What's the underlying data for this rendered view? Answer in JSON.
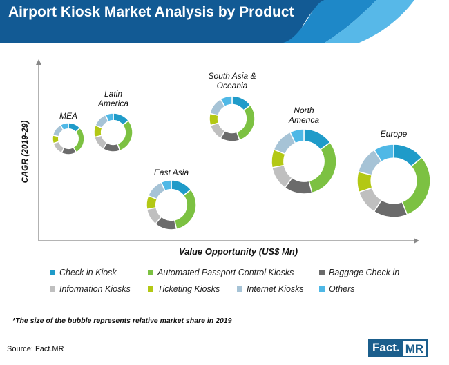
{
  "header": {
    "title": "Airport Kiosk Market Analysis by Product"
  },
  "colors": {
    "header_dark": "#125a94",
    "header_mid": "#1e88c8",
    "header_light": "#57b8e8",
    "check_in_kiosk": "#1f9bc9",
    "automated_passport_control": "#7cc142",
    "baggage_check_in": "#6b6b6b",
    "information_kiosks": "#bfbfbf",
    "ticketing_kiosks": "#b3c814",
    "internet_kiosks": "#a6c3d6",
    "others": "#4fb8e6"
  },
  "chart_data": {
    "type": "bubble-donut",
    "xlabel": "Value Opportunity (US$ Mn)",
    "ylabel": "CAGR (2019-29)",
    "categories": [
      "Check in Kiosk",
      "Automated Passport Control Kiosks",
      "Baggage Check in",
      "Information Kiosks",
      "Ticketing Kiosks",
      "Internet Kiosks",
      "Others"
    ],
    "regions": [
      {
        "name": "MEA",
        "values": [
          11,
          24,
          13,
          11,
          7,
          11,
          7
        ]
      },
      {
        "name": "Latin America",
        "values": [
          13,
          27,
          13,
          11,
          9,
          11,
          6
        ]
      },
      {
        "name": "South Asia & Oceania",
        "values": [
          14,
          28,
          13,
          11,
          8,
          12,
          8
        ]
      },
      {
        "name": "North America",
        "values": [
          15,
          31,
          14,
          12,
          9,
          12,
          7
        ]
      },
      {
        "name": "East Asia",
        "values": [
          13,
          29,
          13,
          10,
          8,
          11,
          6
        ]
      },
      {
        "name": "Europe",
        "values": [
          14,
          30,
          15,
          11,
          9,
          12,
          9
        ]
      }
    ]
  },
  "legend": [
    {
      "label": "Check in Kiosk",
      "color": "#1f9bc9"
    },
    {
      "label": "Automated Passport Control Kiosks",
      "color": "#7cc142"
    },
    {
      "label": "Baggage Check in",
      "color": "#6b6b6b"
    },
    {
      "label": "Information Kiosks",
      "color": "#bfbfbf"
    },
    {
      "label": "Ticketing Kiosks",
      "color": "#b3c814"
    },
    {
      "label": "Internet Kiosks",
      "color": "#a6c3d6"
    },
    {
      "label": "Others",
      "color": "#4fb8e6"
    }
  ],
  "footnote": "*The size of the bubble represents relative market share in 2019",
  "source": {
    "label": "Source:",
    "value": "Fact.MR"
  },
  "logo": {
    "part1": "Fact.",
    "part2": "MR"
  }
}
